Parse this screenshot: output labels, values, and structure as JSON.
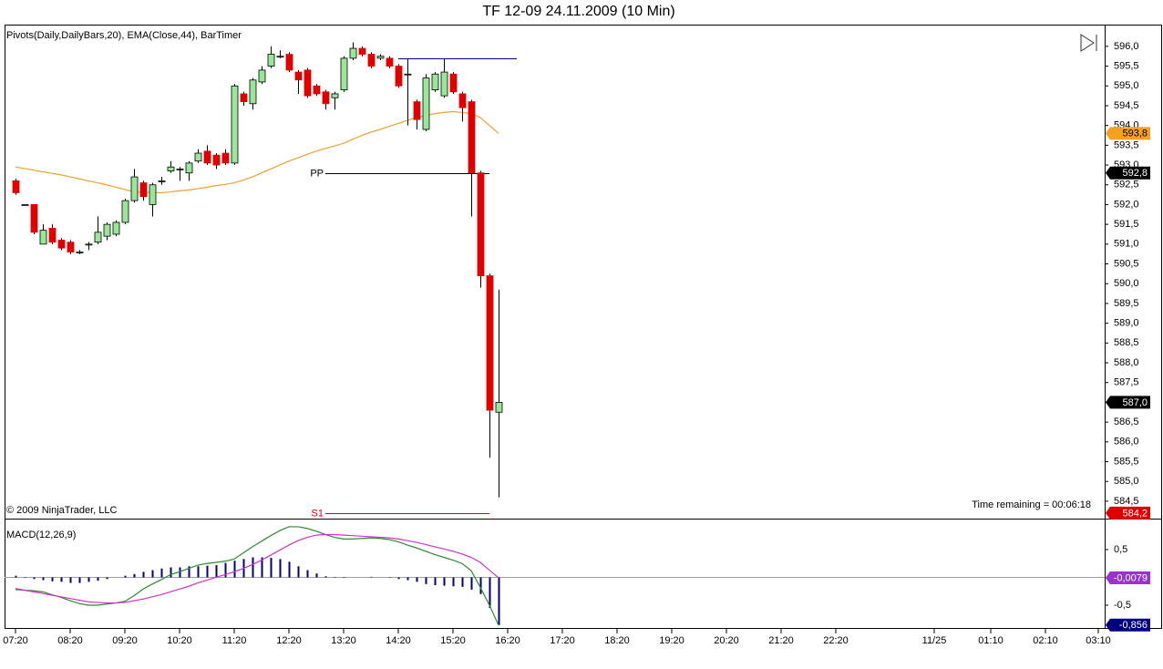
{
  "title": "TF 12-09  24.11.2009 (10 Min)",
  "chart_data": [
    {
      "type": "candlestick",
      "indicator_label": "Pivots(Daily,DailyBars,20), EMA(Close,44), BarTimer",
      "copyright": "© 2009 NinjaTrader, LLC",
      "timer": "Time remaining = 00:06:18",
      "up_color": "#98e698",
      "down_color": "#e00000",
      "xlim": [
        -1.2,
        119.5
      ],
      "ylim": [
        584.06,
        596.55
      ],
      "yticks": [
        {
          "value": 596.0,
          "label": "596,0"
        },
        {
          "value": 595.5,
          "label": "595,5"
        },
        {
          "value": 595.0,
          "label": "595,0"
        },
        {
          "value": 594.5,
          "label": "594,5"
        },
        {
          "value": 594.0,
          "label": "594,0"
        },
        {
          "value": 593.5,
          "label": "593,5"
        },
        {
          "value": 593.0,
          "label": "593,0"
        },
        {
          "value": 592.5,
          "label": "592,5"
        },
        {
          "value": 592.0,
          "label": "592,0"
        },
        {
          "value": 591.5,
          "label": "591,5"
        },
        {
          "value": 591.0,
          "label": "591,0"
        },
        {
          "value": 590.5,
          "label": "590,5"
        },
        {
          "value": 590.0,
          "label": "590,0"
        },
        {
          "value": 589.5,
          "label": "589,5"
        },
        {
          "value": 589.0,
          "label": "589,0"
        },
        {
          "value": 588.5,
          "label": "588,5"
        },
        {
          "value": 588.0,
          "label": "588,0"
        },
        {
          "value": 587.5,
          "label": "587,5"
        },
        {
          "value": 587.0,
          "label": "587,0"
        },
        {
          "value": 586.5,
          "label": "586,5"
        },
        {
          "value": 586.0,
          "label": "586,0"
        },
        {
          "value": 585.5,
          "label": "585,5"
        },
        {
          "value": 585.0,
          "label": "585,0"
        },
        {
          "value": 584.5,
          "label": "584,5"
        }
      ],
      "open": [
        592.6,
        592.0,
        592.0,
        591.0,
        591.4,
        591.1,
        591.05,
        590.8,
        591.0,
        591.05,
        591.2,
        591.25,
        591.55,
        592.1,
        592.55,
        592.0,
        592.6,
        592.85,
        592.9,
        592.8,
        593.1,
        593.35,
        593.25,
        593.3,
        593.05,
        594.8,
        594.55,
        595.1,
        595.5,
        595.75,
        595.8,
        595.35,
        595.4,
        595.0,
        594.85,
        594.7,
        594.9,
        595.7,
        595.95,
        595.8,
        595.7,
        595.7,
        595.5,
        595.3,
        594.6,
        593.9,
        594.9,
        594.75,
        595.3,
        594.8,
        594.6,
        592.8,
        590.2,
        586.75
      ],
      "high": [
        592.65,
        592.0,
        592.0,
        591.5,
        591.5,
        591.15,
        591.1,
        590.85,
        591.05,
        591.7,
        591.55,
        591.6,
        592.15,
        592.9,
        592.6,
        592.55,
        592.7,
        593.1,
        592.95,
        593.1,
        593.4,
        593.5,
        593.3,
        593.4,
        595.05,
        594.85,
        595.2,
        595.5,
        596.0,
        595.9,
        595.85,
        595.4,
        595.45,
        595.05,
        594.9,
        594.85,
        595.75,
        596.1,
        596.0,
        595.85,
        595.8,
        595.75,
        595.55,
        595.7,
        594.65,
        595.3,
        595.35,
        595.7,
        595.35,
        594.85,
        594.65,
        592.85,
        590.25,
        589.85
      ],
      "low": [
        592.25,
        592.0,
        591.25,
        591.0,
        591.0,
        590.85,
        590.75,
        590.75,
        590.85,
        591.0,
        591.1,
        591.2,
        591.5,
        592.05,
        592.1,
        591.7,
        592.5,
        592.8,
        592.6,
        592.6,
        593.05,
        593.0,
        592.9,
        593.0,
        593.0,
        594.5,
        594.4,
        595.05,
        595.45,
        595.7,
        595.35,
        594.8,
        594.7,
        594.75,
        594.4,
        594.4,
        594.85,
        595.65,
        595.75,
        595.45,
        595.65,
        595.45,
        594.95,
        594.0,
        593.9,
        593.85,
        594.85,
        594.7,
        594.8,
        594.1,
        591.7,
        589.9,
        585.6,
        584.6
      ],
      "close": [
        592.3,
        592.0,
        591.3,
        591.35,
        591.05,
        590.9,
        590.8,
        590.8,
        591.0,
        591.3,
        591.5,
        591.55,
        592.1,
        592.7,
        592.2,
        592.5,
        592.6,
        592.95,
        592.9,
        593.05,
        593.3,
        593.05,
        593.0,
        593.05,
        595.0,
        594.6,
        595.15,
        595.4,
        595.8,
        595.75,
        595.4,
        595.15,
        594.75,
        594.8,
        594.55,
        594.8,
        595.7,
        595.95,
        595.8,
        595.5,
        595.75,
        595.5,
        595.0,
        595.3,
        594.15,
        595.2,
        595.3,
        595.35,
        594.85,
        594.45,
        592.8,
        590.2,
        586.8,
        587.0
      ],
      "ema": {
        "color": "#f0a030",
        "values": [
          592.95,
          592.91,
          592.87,
          592.83,
          592.79,
          592.75,
          592.7,
          592.65,
          592.6,
          592.55,
          592.5,
          592.44,
          592.38,
          592.32,
          592.31,
          592.3,
          592.3,
          592.32,
          592.35,
          592.37,
          592.4,
          592.44,
          592.48,
          592.51,
          592.55,
          592.62,
          592.7,
          592.8,
          592.9,
          593.0,
          593.1,
          593.18,
          593.27,
          593.35,
          593.42,
          593.48,
          593.55,
          593.65,
          593.75,
          593.83,
          593.9,
          593.98,
          594.05,
          594.13,
          594.2,
          594.25,
          594.3,
          594.33,
          594.35,
          594.33,
          594.3,
          594.2,
          594.0,
          593.8
        ]
      },
      "lines": [
        {
          "name": "PP",
          "value": 592.8,
          "start": 34,
          "end": 52,
          "color": "#000000"
        },
        {
          "value": 595.7,
          "start": 42,
          "end": 55,
          "color": "#000080"
        },
        {
          "name": "S1",
          "value": 584.2,
          "start": 34,
          "end": 52,
          "color": "#e00000"
        }
      ],
      "price_markers": [
        {
          "value": 593.8,
          "label": "593,8",
          "color": "#f5a020",
          "text_color": "#000000"
        },
        {
          "value": 592.8,
          "label": "592,8",
          "color": "#000000",
          "text_color": "#ffffff"
        },
        {
          "value": 587.0,
          "label": "587,0",
          "color": "#000000",
          "text_color": "#ffffff"
        },
        {
          "value": 584.2,
          "label": "584,2",
          "color": "#e00000",
          "text_color": "#ffffff"
        }
      ]
    },
    {
      "type": "macd",
      "indicator_label": "MACD(12,26,9)",
      "xlim": [
        -1.2,
        119.5
      ],
      "ylim": [
        -0.926,
        1.04
      ],
      "yticks": [
        {
          "value": 0.5,
          "label": "0,5"
        },
        {
          "value": -0.5,
          "label": "-0,5"
        }
      ],
      "reference_line": 0,
      "xticks": [
        {
          "value": 0,
          "label": "07:20"
        },
        {
          "value": 6,
          "label": "08:20"
        },
        {
          "value": 12,
          "label": "09:20"
        },
        {
          "value": 18,
          "label": "10:20"
        },
        {
          "value": 24,
          "label": "11:20"
        },
        {
          "value": 30,
          "label": "12:20"
        },
        {
          "value": 36,
          "label": "13:20"
        },
        {
          "value": 42,
          "label": "14:20"
        },
        {
          "value": 48,
          "label": "15:20"
        },
        {
          "value": 54,
          "label": "16:20"
        },
        {
          "value": 60,
          "label": "17:20"
        },
        {
          "value": 66,
          "label": "18:20"
        },
        {
          "value": 72,
          "label": "19:20"
        },
        {
          "value": 78,
          "label": "20:20"
        },
        {
          "value": 84,
          "label": "21:20"
        },
        {
          "value": 90,
          "label": "22:20"
        },
        {
          "value": 100.8,
          "label": "11/25"
        },
        {
          "value": 107,
          "label": "01:10"
        },
        {
          "value": 113,
          "label": "02:10"
        },
        {
          "value": 118.8,
          "label": "03:10"
        }
      ],
      "series": [
        {
          "color": "#2e8b2e",
          "values": [
            -0.22,
            -0.23,
            -0.24,
            -0.26,
            -0.31,
            -0.36,
            -0.42,
            -0.47,
            -0.5,
            -0.5,
            -0.48,
            -0.46,
            -0.43,
            -0.33,
            -0.21,
            -0.12,
            -0.04,
            0.05,
            0.1,
            0.16,
            0.22,
            0.25,
            0.27,
            0.29,
            0.33,
            0.44,
            0.55,
            0.65,
            0.75,
            0.84,
            0.91,
            0.91,
            0.88,
            0.83,
            0.77,
            0.72,
            0.69,
            0.69,
            0.7,
            0.71,
            0.7,
            0.68,
            0.64,
            0.58,
            0.53,
            0.47,
            0.41,
            0.36,
            0.31,
            0.25,
            0.12,
            -0.18,
            -0.5,
            -0.86
          ]
        },
        {
          "color": "#cc33cc",
          "values": [
            -0.2,
            -0.23,
            -0.26,
            -0.29,
            -0.32,
            -0.35,
            -0.38,
            -0.41,
            -0.44,
            -0.45,
            -0.46,
            -0.46,
            -0.45,
            -0.42,
            -0.39,
            -0.35,
            -0.31,
            -0.26,
            -0.21,
            -0.16,
            -0.1,
            -0.05,
            0.0,
            0.05,
            0.1,
            0.16,
            0.23,
            0.31,
            0.4,
            0.49,
            0.58,
            0.66,
            0.72,
            0.76,
            0.77,
            0.77,
            0.76,
            0.75,
            0.74,
            0.73,
            0.72,
            0.71,
            0.69,
            0.66,
            0.63,
            0.59,
            0.55,
            0.51,
            0.47,
            0.42,
            0.36,
            0.27,
            0.13,
            -0.0079
          ]
        }
      ],
      "histogram": {
        "color": "#000080",
        "values": [
          0.03,
          -0.01,
          -0.03,
          -0.05,
          -0.07,
          -0.08,
          -0.1,
          -0.1,
          -0.08,
          -0.06,
          -0.03,
          0,
          0.03,
          0.06,
          0.1,
          0.13,
          0.16,
          0.18,
          0.18,
          0.2,
          0.2,
          0.21,
          0.22,
          0.26,
          0.3,
          0.33,
          0.36,
          0.36,
          0.35,
          0.33,
          0.28,
          0.2,
          0.13,
          0.07,
          0.02,
          -0.01,
          -0.01,
          0,
          0,
          0.01,
          0,
          -0.01,
          -0.03,
          -0.05,
          -0.08,
          -0.12,
          -0.14,
          -0.15,
          -0.16,
          -0.17,
          -0.22,
          -0.3,
          -0.55,
          -0.856
        ]
      },
      "price_markers": [
        {
          "value": -0.0079,
          "label": "-0,0079",
          "color": "#9933cc",
          "text_color": "#ffffff"
        },
        {
          "value": -0.856,
          "label": "-0,856",
          "color": "#000080",
          "text_color": "#ffffff"
        }
      ]
    }
  ]
}
